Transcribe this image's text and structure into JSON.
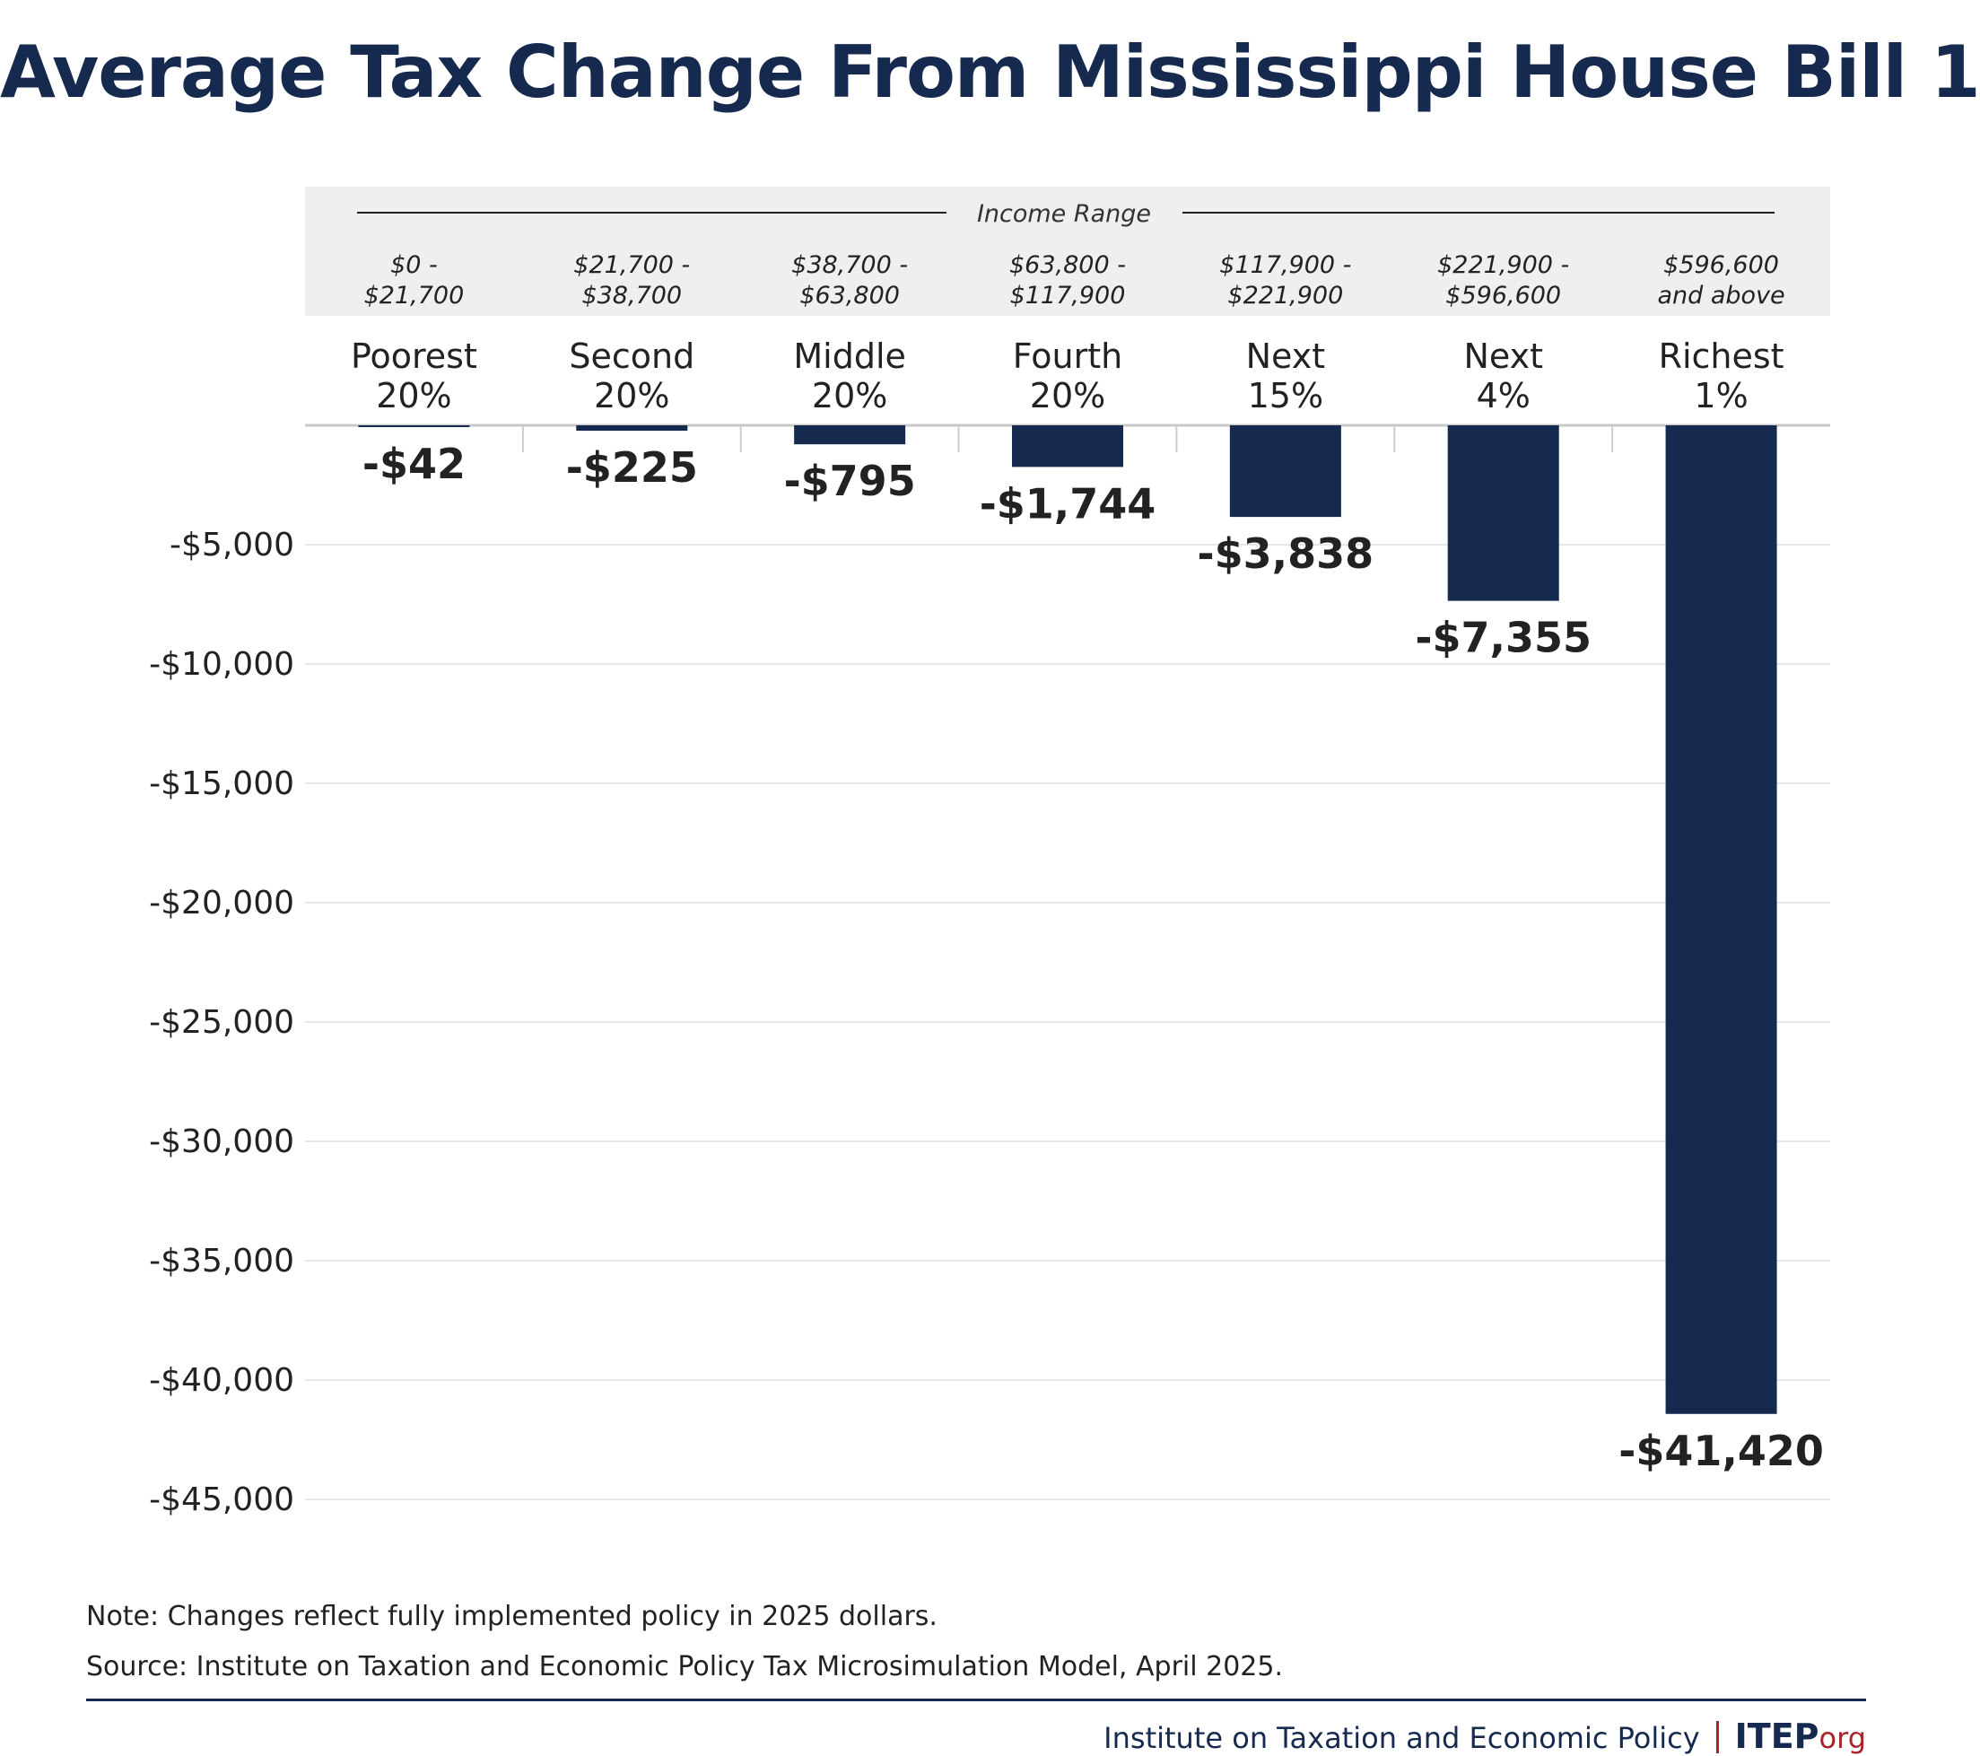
{
  "title": "Average Tax Change From Mississippi House Bill 1",
  "header_label": "Income Range",
  "notes": {
    "note": "Note: Changes reflect fully implemented policy in 2025 dollars.",
    "source": "Source: Institute on Taxation and Economic Policy Tax Microsimulation Model, April 2025."
  },
  "footer": {
    "org": "Institute on Taxation and Economic Policy",
    "brand": "ITEP",
    "brand_suffix": "org"
  },
  "colors": {
    "bar": "#152a4e",
    "header_band": "#efefef",
    "gridline": "#e6e6e6",
    "accent": "#a3262a"
  },
  "chart_data": {
    "type": "bar",
    "categories": [
      [
        "Poorest",
        "20%"
      ],
      [
        "Second",
        "20%"
      ],
      [
        "Middle",
        "20%"
      ],
      [
        "Fourth",
        "20%"
      ],
      [
        "Next",
        "15%"
      ],
      [
        "Next",
        "4%"
      ],
      [
        "Richest",
        "1%"
      ]
    ],
    "income_ranges": [
      [
        "$0 -",
        "$21,700"
      ],
      [
        "$21,700 -",
        "$38,700"
      ],
      [
        "$38,700 -",
        "$63,800"
      ],
      [
        "$63,800 -",
        "$117,900"
      ],
      [
        "$117,900 -",
        "$221,900"
      ],
      [
        "$221,900 -",
        "$596,600"
      ],
      [
        "$596,600",
        "and above"
      ]
    ],
    "values": [
      -42,
      -225,
      -795,
      -1744,
      -3838,
      -7355,
      -41420
    ],
    "data_labels": [
      "-$42",
      "-$225",
      "-$795",
      "-$1,744",
      "-$3,838",
      "-$7,355",
      "-$41,420"
    ],
    "yticks": [
      -5000,
      -10000,
      -15000,
      -20000,
      -25000,
      -30000,
      -35000,
      -40000,
      -45000
    ],
    "ytick_labels": [
      "-$5,000",
      "-$10,000",
      "-$15,000",
      "-$20,000",
      "-$25,000",
      "-$30,000",
      "-$35,000",
      "-$40,000",
      "-$45,000"
    ],
    "ylim": [
      -45000,
      0
    ],
    "grid": true
  }
}
